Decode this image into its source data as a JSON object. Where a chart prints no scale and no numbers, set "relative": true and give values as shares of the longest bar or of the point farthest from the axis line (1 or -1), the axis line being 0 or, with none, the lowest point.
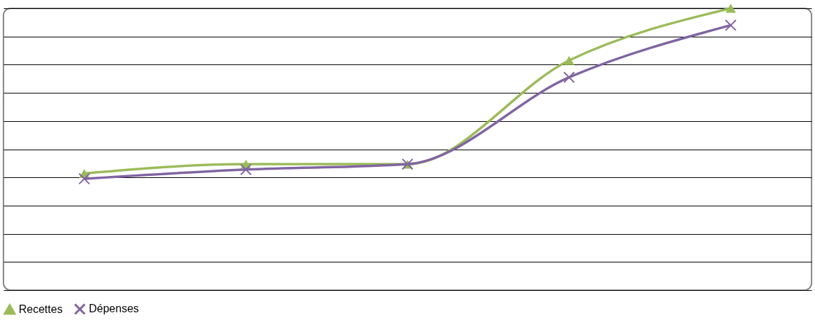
{
  "chart_data": {
    "type": "line",
    "relative": true,
    "categories": [
      null,
      null,
      null,
      null,
      null
    ],
    "grid": "y",
    "legend": "bottom",
    "series": [
      {
        "name": "Recettes",
        "color": "#9bbb59",
        "marker": "triangle",
        "values": [
          0.414,
          0.447,
          0.447,
          0.815,
          1
        ]
      },
      {
        "name": "Dépenses",
        "color": "#8064a2",
        "marker": "cross",
        "values": [
          0.395,
          0.428,
          0.447,
          0.755,
          0.94
        ]
      }
    ]
  }
}
